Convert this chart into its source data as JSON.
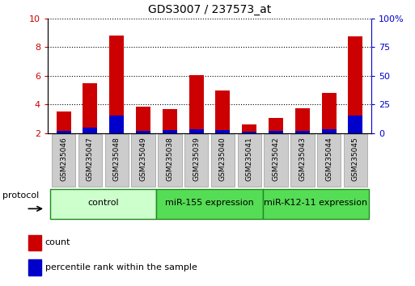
{
  "title": "GDS3007 / 237573_at",
  "categories": [
    "GSM235046",
    "GSM235047",
    "GSM235048",
    "GSM235049",
    "GSM235038",
    "GSM235039",
    "GSM235040",
    "GSM235041",
    "GSM235042",
    "GSM235043",
    "GSM235044",
    "GSM235045"
  ],
  "count_values": [
    3.5,
    5.5,
    8.8,
    3.85,
    3.7,
    6.05,
    4.95,
    2.6,
    3.05,
    3.75,
    4.8,
    8.75
  ],
  "percentile_values": [
    2.15,
    2.35,
    3.2,
    2.15,
    2.2,
    2.25,
    2.2,
    2.1,
    2.15,
    2.15,
    2.25,
    3.2
  ],
  "y_min": 2,
  "y_max": 10,
  "y_ticks": [
    2,
    4,
    6,
    8,
    10
  ],
  "y_right_ticks": [
    0,
    25,
    50,
    75,
    100
  ],
  "y_right_labels": [
    "0",
    "25",
    "50",
    "75",
    "100%"
  ],
  "bar_color_count": "#cc0000",
  "bar_color_percentile": "#0000cc",
  "bar_width": 0.55,
  "groups": [
    {
      "label": "control",
      "start": 0,
      "end": 4,
      "color": "#ccffcc"
    },
    {
      "label": "miR-155 expression",
      "start": 4,
      "end": 8,
      "color": "#55dd55"
    },
    {
      "label": "miR-K12-11 expression",
      "start": 8,
      "end": 12,
      "color": "#55dd55"
    }
  ],
  "protocol_label": "protocol",
  "legend_count_label": "count",
  "legend_percentile_label": "percentile rank within the sample",
  "title_color": "#000000",
  "left_axis_color": "#cc0000",
  "right_axis_color": "#0000cc",
  "background_color": "#ffffff"
}
